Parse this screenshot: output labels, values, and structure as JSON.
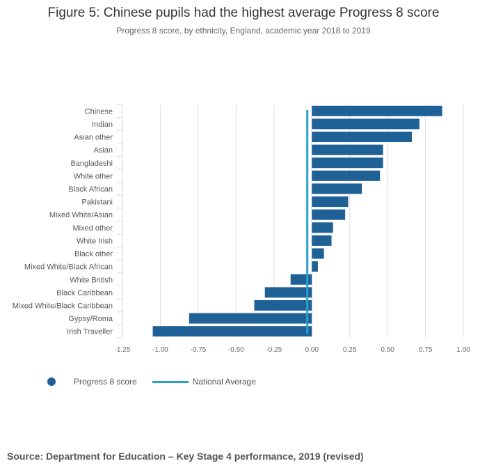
{
  "chart_data": {
    "type": "bar",
    "orientation": "horizontal",
    "title": "Figure 5: Chinese pupils had the highest average Progress 8 score",
    "subtitle": "Progress 8 score, by ethnicity, England, academic year 2018 to 2019",
    "categories": [
      "Chinese",
      "Indian",
      "Asian other",
      "Asian",
      "Bangladeshi",
      "White other",
      "Black African",
      "Pakistani",
      "Mixed White/Asian",
      "Mixed other",
      "White Irish",
      "Black other",
      "Mixed White/Black African",
      "White British",
      "Black Caribbean",
      "Mixed White/Black Caribbean",
      "Gypsy/Roma",
      "Irish Traveller"
    ],
    "series": [
      {
        "name": "Progress 8 score",
        "color": "#1f6096",
        "values": [
          0.86,
          0.71,
          0.66,
          0.47,
          0.47,
          0.45,
          0.33,
          0.24,
          0.22,
          0.14,
          0.13,
          0.08,
          0.04,
          -0.14,
          -0.31,
          -0.38,
          -0.81,
          -1.05
        ]
      },
      {
        "name": "National Average",
        "color": "#27a0cc",
        "value": -0.03
      }
    ],
    "xlim": [
      -1.25,
      1.0
    ],
    "xticks": [
      "-1.25",
      "-1.00",
      "-0.75",
      "-0.50",
      "-0.25",
      "0.00",
      "0.25",
      "0.50",
      "0.75",
      "1.00"
    ],
    "grid": true,
    "legend_position": "bottom-left"
  },
  "source": "Source: Department for Education – Key Stage 4 performance, 2019 (revised)"
}
